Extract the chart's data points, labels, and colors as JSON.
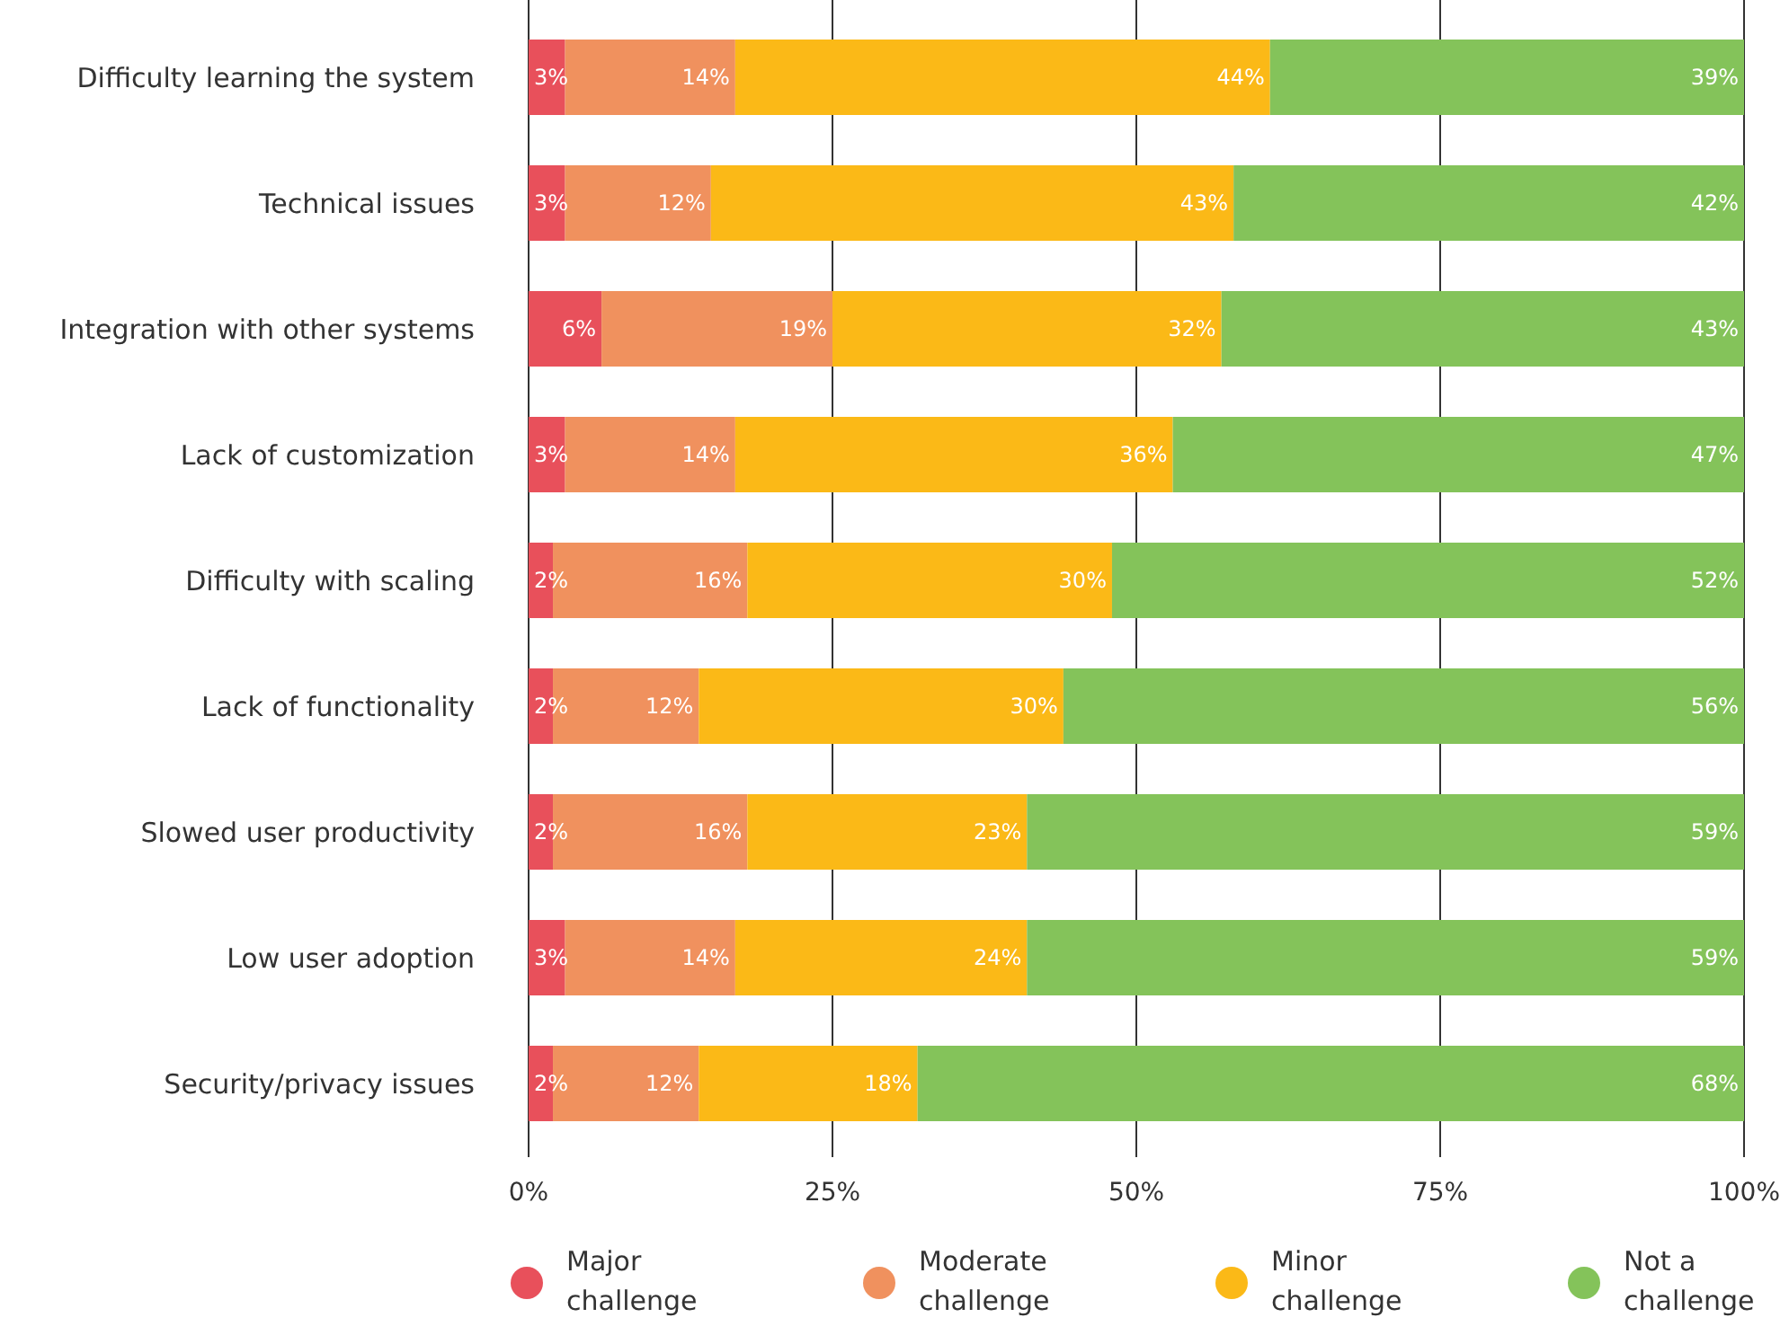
{
  "chart_data": {
    "type": "bar",
    "orientation": "horizontal",
    "stacked": true,
    "categories": [
      "Difficulty learning the system",
      "Technical issues",
      "Integration with other systems",
      "Lack of customization",
      "Difficulty with scaling",
      "Lack of functionality",
      "Slowed user productivity",
      "Low user adoption",
      "Security/privacy issues"
    ],
    "series": [
      {
        "name": "Major challenge",
        "color": "#e8505b",
        "values": [
          3,
          3,
          6,
          3,
          2,
          2,
          2,
          3,
          2
        ],
        "value_labels": [
          "3%",
          "3%",
          "6%",
          "3%",
          "2%",
          "2%",
          "2%",
          "3%",
          "2%"
        ]
      },
      {
        "name": "Moderate challenge",
        "color": "#f0915e",
        "values": [
          14,
          12,
          19,
          14,
          16,
          12,
          16,
          14,
          12
        ],
        "value_labels": [
          "14%",
          "12%",
          "19%",
          "14%",
          "16%",
          "12%",
          "16%",
          "14%",
          "12%"
        ]
      },
      {
        "name": "Minor challenge",
        "color": "#fbb917",
        "values": [
          44,
          43,
          32,
          36,
          30,
          30,
          23,
          24,
          18
        ],
        "value_labels": [
          "44%",
          "43%",
          "32%",
          "36%",
          "30%",
          "30%",
          "23%",
          "24%",
          "18%"
        ]
      },
      {
        "name": "Not a challenge",
        "color": "#84c35a",
        "values": [
          39,
          42,
          43,
          47,
          52,
          56,
          59,
          59,
          68
        ],
        "value_labels": [
          "39%",
          "42%",
          "43%",
          "47%",
          "52%",
          "56%",
          "59%",
          "59%",
          "68%"
        ]
      }
    ],
    "xlim": [
      0,
      100
    ],
    "xticks": [
      {
        "value": 0,
        "label": "0%"
      },
      {
        "value": 25,
        "label": "25%"
      },
      {
        "value": 50,
        "label": "50%"
      },
      {
        "value": 75,
        "label": "75%"
      },
      {
        "value": 100,
        "label": "100%"
      }
    ],
    "grid": "x",
    "legend": "bottom"
  }
}
